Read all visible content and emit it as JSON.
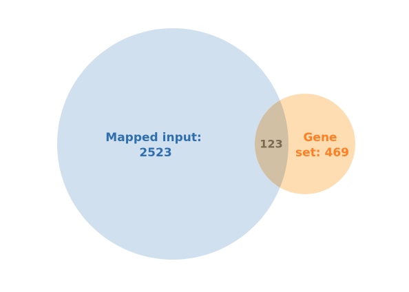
{
  "chart_data": {
    "type": "venn",
    "sets": [
      {
        "id": "A",
        "name": "Mapped input",
        "size": 2523,
        "label_lines": [
          "Mapped input:",
          "2523"
        ],
        "fill": "#c6d9ec",
        "text_color": "#2f6fb0"
      },
      {
        "id": "B",
        "name": "Gene set",
        "size": 469,
        "label_lines": [
          "Gene",
          "set: 469"
        ],
        "fill": "#ffd9aa",
        "text_color": "#ff7f24"
      }
    ],
    "intersections": [
      {
        "sets": [
          "A",
          "B"
        ],
        "size": 123,
        "label": "123",
        "fill": "#d2c0a4",
        "text_color": "#7a6a52"
      }
    ]
  }
}
